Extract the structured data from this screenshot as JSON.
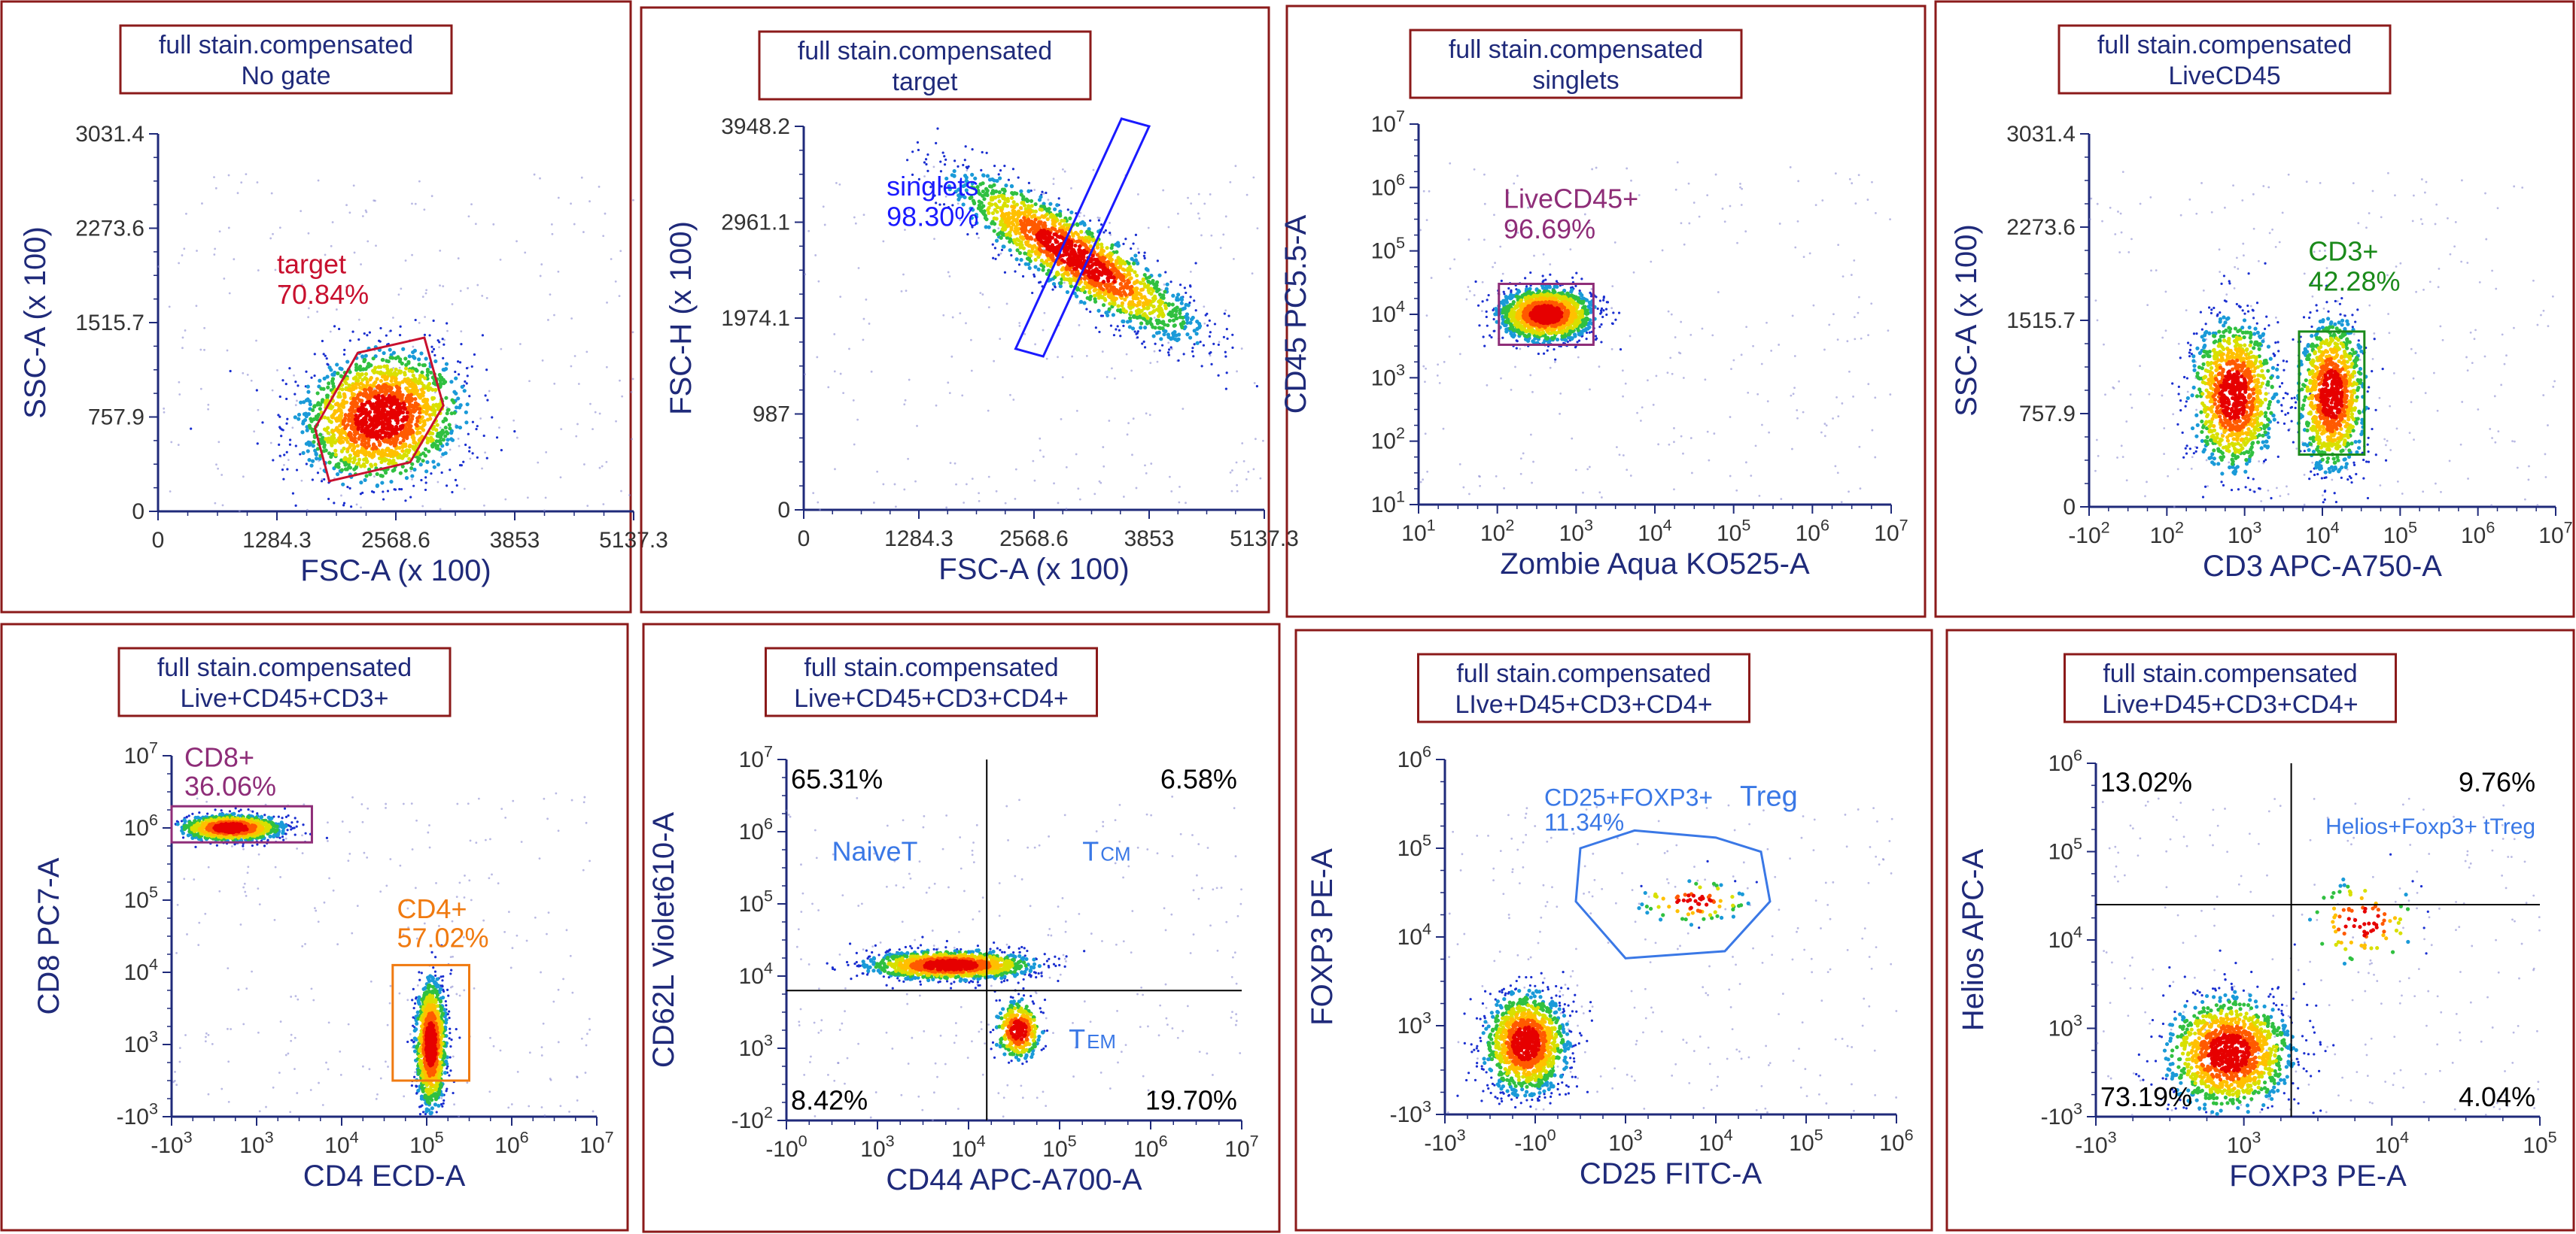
{
  "colors": {
    "panel_border": "#8b1a1a",
    "axis": "#1f2a7a",
    "label": "#1f2a7a",
    "gate_red": "#c8102e",
    "gate_blue": "#1a1aff",
    "gate_purple": "#8e2d78",
    "gate_green": "#1a8a1a",
    "gate_orange": "#f07a10",
    "gate_lightblue": "#3a78e6",
    "quad_line": "#000000"
  },
  "chart_data": [
    {
      "type": "scatter",
      "title_line1": "full stain.compensated",
      "title_line2": "No gate",
      "xlabel": "FSC-A (x 100)",
      "ylabel": "SSC-A (x 100)",
      "x_scale": "linear",
      "y_scale": "linear",
      "xticks": [
        "0",
        "1284.3",
        "2568.6",
        "3853",
        "5137.3"
      ],
      "yticks": [
        "0",
        "757.9",
        "1515.7",
        "2273.6",
        "3031.4"
      ],
      "clusters": [
        {
          "cx": 0.47,
          "cy": 0.25,
          "sx": 0.08,
          "sy": 0.09,
          "n": 1800,
          "angle": -0.6
        }
      ],
      "gates": [
        {
          "name": "target",
          "value": "70.84%",
          "color": "red"
        }
      ]
    },
    {
      "type": "scatter",
      "title_line1": "full stain.compensated",
      "title_line2": "target",
      "xlabel": "FSC-A (x 100)",
      "ylabel": "FSC-H (x 100)",
      "x_scale": "linear",
      "y_scale": "linear",
      "xticks": [
        "0",
        "1284.3",
        "2568.6",
        "3853",
        "5137.3"
      ],
      "yticks": [
        "0",
        "987",
        "1974.1",
        "2961.1",
        "3948.2"
      ],
      "clusters": [
        {
          "cx": 0.59,
          "cy": 0.66,
          "sx": 0.04,
          "sy": 0.16,
          "n": 1800,
          "angle": 0.9
        }
      ],
      "gates": [
        {
          "name": "singlets",
          "value": "98.30%",
          "color": "blue"
        }
      ]
    },
    {
      "type": "scatter",
      "title_line1": "full stain.compensated",
      "title_line2": "singlets",
      "xlabel": "Zombie Aqua KO525-A",
      "ylabel": "CD45 PC5.5-A",
      "x_scale": "log",
      "y_scale": "log",
      "xticks": [
        "10^1",
        "10^2",
        "10^3",
        "10^4",
        "10^5",
        "10^6",
        "10^7"
      ],
      "yticks": [
        "10^1",
        "10^2",
        "10^3",
        "10^4",
        "10^5",
        "10^6",
        "10^7"
      ],
      "clusters": [
        {
          "cx": 0.27,
          "cy": 0.5,
          "sx": 0.05,
          "sy": 0.035,
          "n": 1500,
          "angle": 0
        }
      ],
      "gates": [
        {
          "name": "LiveCD45+",
          "value": "96.69%",
          "color": "purple"
        }
      ]
    },
    {
      "type": "scatter",
      "title_line1": "full stain.compensated",
      "title_line2": "LiveCD45",
      "xlabel": "CD3 APC-A750-A",
      "ylabel": "SSC-A (x 100)",
      "x_scale": "log",
      "y_scale": "linear",
      "xticks": [
        "-10^2",
        "10^2",
        "10^3",
        "10^4",
        "10^5",
        "10^6",
        "10^7"
      ],
      "yticks": [
        "0",
        "757.9",
        "1515.7",
        "2273.6",
        "3031.4"
      ],
      "clusters": [
        {
          "cx": 0.31,
          "cy": 0.3,
          "sx": 0.045,
          "sy": 0.1,
          "n": 1100,
          "angle": 0
        },
        {
          "cx": 0.52,
          "cy": 0.3,
          "sx": 0.035,
          "sy": 0.1,
          "n": 1000,
          "angle": 0
        }
      ],
      "gates": [
        {
          "name": "CD3+",
          "value": "42.28%",
          "color": "green"
        }
      ]
    },
    {
      "type": "scatter",
      "title_line1": "full stain.compensated",
      "title_line2": "Live+CD45+CD3+",
      "xlabel": "CD4 ECD-A",
      "ylabel": "CD8 PC7-A",
      "x_scale": "log",
      "y_scale": "log",
      "xticks": [
        "-10^3",
        "10^3",
        "10^4",
        "10^5",
        "10^6",
        "10^7"
      ],
      "yticks": [
        "-10^3",
        "10^3",
        "10^4",
        "10^5",
        "10^6",
        "10^7"
      ],
      "clusters": [
        {
          "cx": 0.14,
          "cy": 0.8,
          "sx": 0.06,
          "sy": 0.018,
          "n": 1000,
          "angle": 0
        },
        {
          "cx": 0.61,
          "cy": 0.2,
          "sx": 0.018,
          "sy": 0.09,
          "n": 1100,
          "angle": 0
        }
      ],
      "gates": [
        {
          "name": "CD8+",
          "value": "36.06%",
          "color": "purple"
        },
        {
          "name": "CD4+",
          "value": "57.02%",
          "color": "orange"
        }
      ]
    },
    {
      "type": "scatter",
      "title_line1": "full stain.compensated",
      "title_line2": "Live+CD45+CD3+CD4+",
      "xlabel": "CD44 APC-A700-A",
      "ylabel": "CD62L Violet610-A",
      "x_scale": "log",
      "y_scale": "log",
      "xticks": [
        "-10^0",
        "10^3",
        "10^4",
        "10^5",
        "10^6",
        "10^7"
      ],
      "yticks": [
        "-10^2",
        "10^3",
        "10^4",
        "10^5",
        "10^6",
        "10^7"
      ],
      "clusters": [
        {
          "cx": 0.36,
          "cy": 0.43,
          "sx": 0.09,
          "sy": 0.02,
          "n": 1300,
          "angle": 0
        },
        {
          "cx": 0.51,
          "cy": 0.25,
          "sx": 0.025,
          "sy": 0.04,
          "n": 350,
          "angle": 0
        }
      ],
      "quadrant_labels": {
        "top_left": "65.31%",
        "top_right": "6.58%",
        "bottom_left": "8.42%",
        "bottom_right": "19.70%"
      },
      "region_labels": [
        {
          "name": "NaiveT"
        },
        {
          "name": "T",
          "subscript": "CM"
        },
        {
          "name": "T",
          "subscript": "EM"
        }
      ]
    },
    {
      "type": "scatter",
      "title_line1": "full stain.compensated",
      "title_line2": "LIve+D45+CD3+CD4+",
      "xlabel": "CD25 FITC-A",
      "ylabel": "FOXP3 PE-A",
      "x_scale": "log",
      "y_scale": "log",
      "xticks": [
        "-10^3",
        "-10^0",
        "10^3",
        "10^4",
        "10^5",
        "10^6"
      ],
      "yticks": [
        "-10^3",
        "10^3",
        "10^4",
        "10^5",
        "10^6"
      ],
      "clusters": [
        {
          "cx": 0.18,
          "cy": 0.2,
          "sx": 0.045,
          "sy": 0.07,
          "n": 1300,
          "angle": 0
        },
        {
          "cx": 0.55,
          "cy": 0.6,
          "sx": 0.06,
          "sy": 0.03,
          "n": 80,
          "angle": 0
        }
      ],
      "gates": [
        {
          "name": "CD25+FOXP3+",
          "name_suffix": "Treg",
          "value": "11.34%",
          "color": "lightblue"
        }
      ]
    },
    {
      "type": "scatter",
      "title_line1": "full stain.compensated",
      "title_line2": "Live+D45+CD3+CD4+",
      "xlabel": "FOXP3 PE-A",
      "ylabel": "Helios APC-A",
      "x_scale": "log",
      "y_scale": "log",
      "xticks": [
        "-10^3",
        "10^3",
        "10^4",
        "10^5"
      ],
      "yticks": [
        "-10^3",
        "10^3",
        "10^4",
        "10^5",
        "10^6"
      ],
      "clusters": [
        {
          "cx": 0.3,
          "cy": 0.18,
          "sx": 0.07,
          "sy": 0.08,
          "n": 1300,
          "angle": 0
        },
        {
          "cx": 0.6,
          "cy": 0.55,
          "sx": 0.06,
          "sy": 0.06,
          "n": 90,
          "angle": 0
        }
      ],
      "quadrant_labels": {
        "top_left": "13.02%",
        "top_right": "9.76%",
        "bottom_left": "73.19%",
        "bottom_right": "4.04%"
      },
      "region_labels": [
        {
          "name": "Helios+Foxp3+ tTreg"
        }
      ]
    }
  ]
}
